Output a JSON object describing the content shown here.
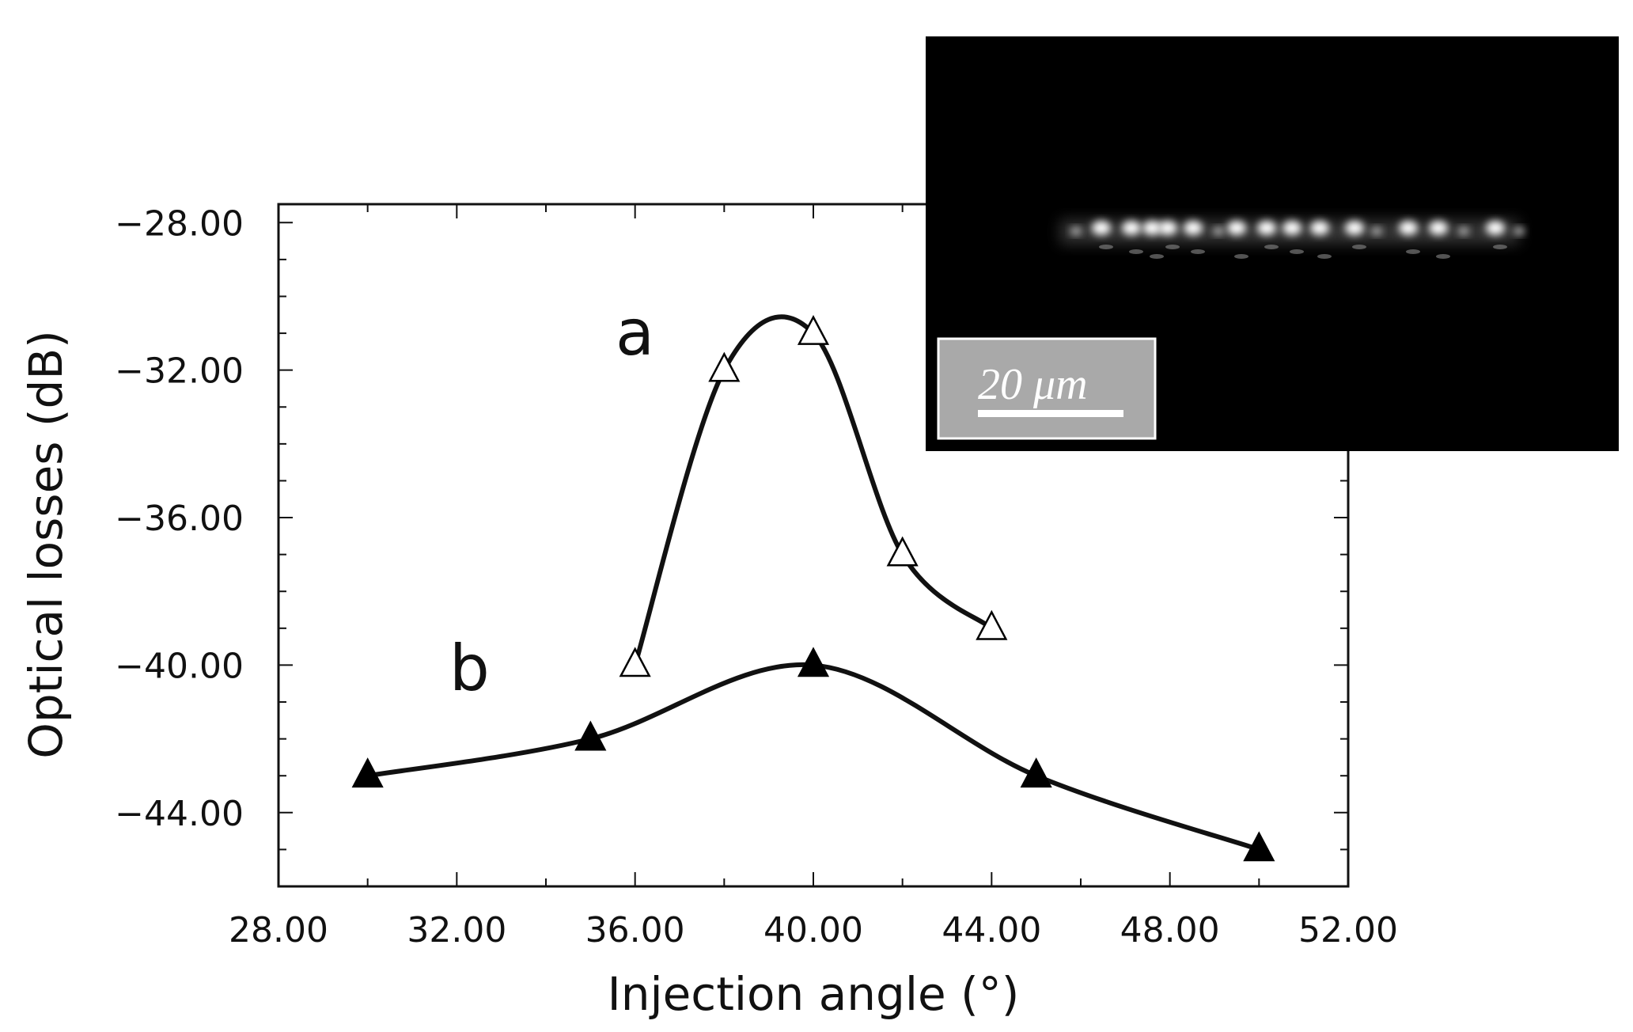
{
  "chart_data": {
    "type": "line",
    "xlabel": "Injection angle (°)",
    "ylabel": "Optical losses (dB)",
    "xlim": [
      28.0,
      52.0
    ],
    "ylim": [
      -46.0,
      -28.0
    ],
    "x_ticks": [
      "28.00",
      "32.00",
      "36.00",
      "40.00",
      "44.00",
      "48.00",
      "52.00"
    ],
    "y_ticks": [
      "-28.00",
      "-32.00",
      "-36.00",
      "-40.00",
      "-44.00"
    ],
    "x_tick_values": [
      28,
      32,
      36,
      40,
      44,
      48,
      52
    ],
    "y_tick_values": [
      -28,
      -32,
      -36,
      -40,
      -44
    ],
    "grid": false,
    "series": [
      {
        "name": "a",
        "marker": "open-triangle",
        "color": "#111111",
        "x": [
          36,
          38,
          40,
          42,
          44
        ],
        "y": [
          -40.0,
          -32.0,
          -31.0,
          -37.0,
          -39.0
        ]
      },
      {
        "name": "b",
        "marker": "filled-triangle",
        "color": "#111111",
        "x": [
          30,
          35,
          40,
          45,
          50
        ],
        "y": [
          -43.0,
          -42.0,
          -40.0,
          -43.0,
          -45.0
        ]
      }
    ]
  },
  "inset": {
    "description_color": "#000000",
    "scale_bar_label": "20 μm"
  }
}
